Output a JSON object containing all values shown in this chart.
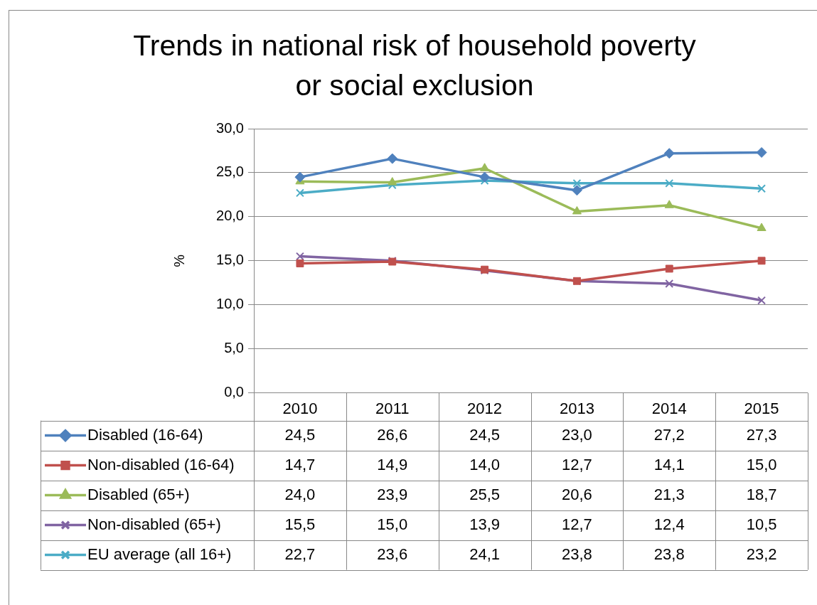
{
  "chart_data": {
    "type": "line",
    "title": "Trends in national risk of household poverty or social exclusion",
    "ylabel": "%",
    "categories": [
      "2010",
      "2011",
      "2012",
      "2013",
      "2014",
      "2015"
    ],
    "series": [
      {
        "name": "Disabled (16-64)",
        "color": "#4f81bd",
        "marker": "diamond",
        "values": [
          24.5,
          26.6,
          24.5,
          23.0,
          27.2,
          27.3
        ],
        "value_labels": [
          "24,5",
          "26,6",
          "24,5",
          "23,0",
          "27,2",
          "27,3"
        ]
      },
      {
        "name": "Non-disabled (16-64)",
        "color": "#c0504d",
        "marker": "square",
        "values": [
          14.7,
          14.9,
          14.0,
          12.7,
          14.1,
          15.0
        ],
        "value_labels": [
          "14,7",
          "14,9",
          "14,0",
          "12,7",
          "14,1",
          "15,0"
        ]
      },
      {
        "name": "Disabled (65+)",
        "color": "#9bbb59",
        "marker": "triangle",
        "values": [
          24.0,
          23.9,
          25.5,
          20.6,
          21.3,
          18.7
        ],
        "value_labels": [
          "24,0",
          "23,9",
          "25,5",
          "20,6",
          "21,3",
          "18,7"
        ]
      },
      {
        "name": "Non-disabled (65+)",
        "color": "#8064a2",
        "marker": "cross",
        "values": [
          15.5,
          15.0,
          13.9,
          12.7,
          12.4,
          10.5
        ],
        "value_labels": [
          "15,5",
          "15,0",
          "13,9",
          "12,7",
          "12,4",
          "10,5"
        ]
      },
      {
        "name": "EU average (all 16+)",
        "color": "#4bacc6",
        "marker": "cross",
        "values": [
          22.7,
          23.6,
          24.1,
          23.8,
          23.8,
          23.2
        ],
        "value_labels": [
          "22,7",
          "23,6",
          "24,1",
          "23,8",
          "23,8",
          "23,2"
        ]
      }
    ],
    "ylim": [
      0,
      30
    ],
    "yticks": [
      {
        "value": 0,
        "label": "0,0"
      },
      {
        "value": 5,
        "label": "5,0"
      },
      {
        "value": 10,
        "label": "10,0"
      },
      {
        "value": 15,
        "label": "15,0"
      },
      {
        "value": 20,
        "label": "20,0"
      },
      {
        "value": 25,
        "label": "25,0"
      },
      {
        "value": 30,
        "label": "30,0"
      }
    ],
    "grid": "y",
    "legend": "bottom",
    "line_style": "solid"
  }
}
